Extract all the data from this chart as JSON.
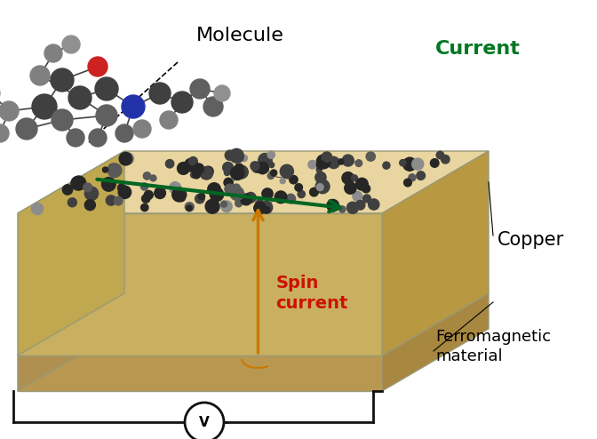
{
  "bg_color": "#ffffff",
  "label_molecule": "Molecule",
  "label_current": "Current",
  "label_copper": "Copper",
  "label_spin_current": "Spin\ncurrent",
  "label_ferromagnetic": "Ferromagnetic\nmaterial",
  "label_voltmeter": "V",
  "copper_top_color": "#e8d5a0",
  "copper_front_color": "#c8b060",
  "copper_right_color": "#b89840",
  "copper_left_color": "#c0a850",
  "ferro_top_color": "#d4c080",
  "ferro_front_color": "#b89850",
  "ferro_right_color": "#a88840",
  "ferro_left_color": "#b09050",
  "current_arrow_color": "#006622",
  "spin_arrow_color": "#cc7700",
  "text_color_black": "#000000",
  "text_color_green": "#007722",
  "text_color_red": "#cc1100",
  "wire_color": "#111111"
}
